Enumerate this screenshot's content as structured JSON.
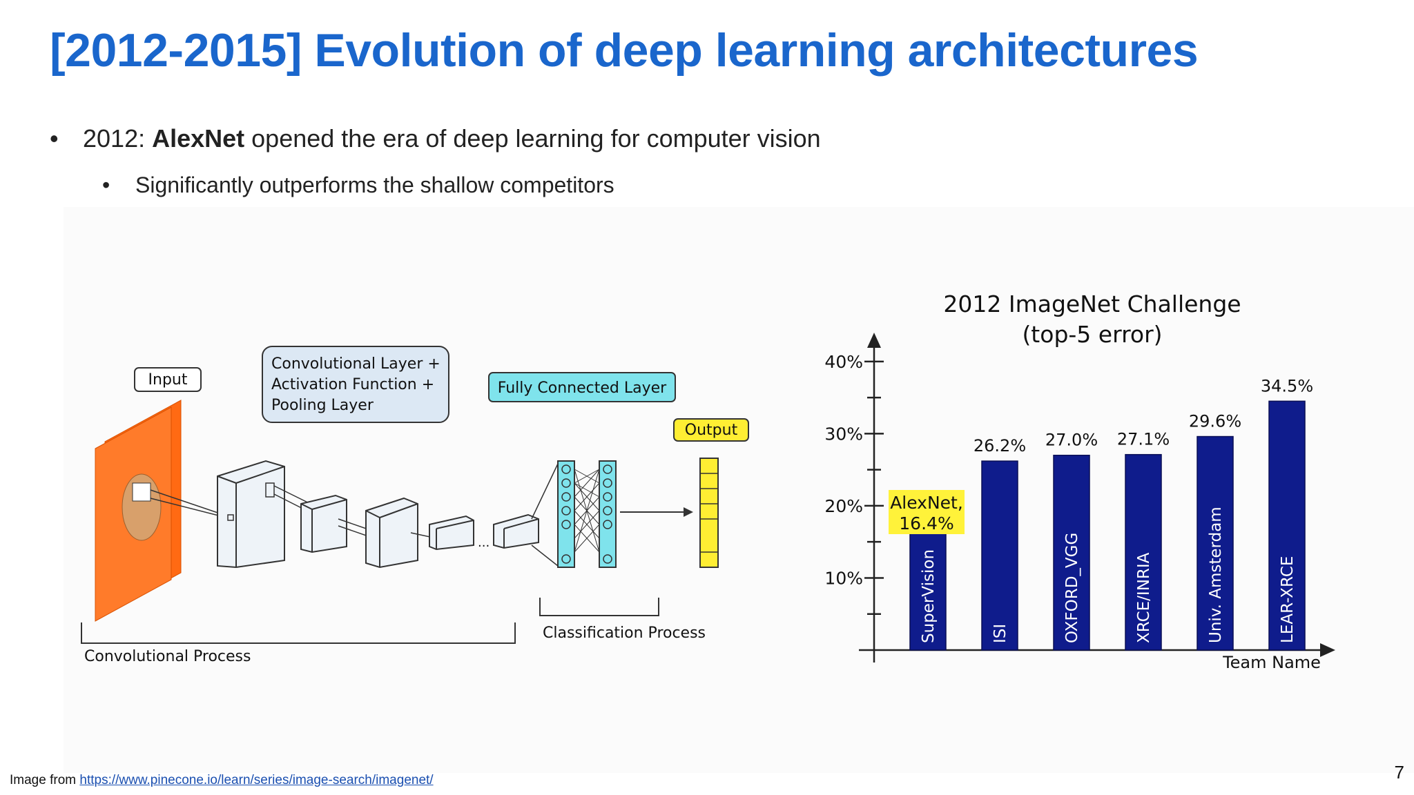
{
  "slide": {
    "title": "[2012-2015] Evolution of deep learning architectures",
    "bullet1_prefix": "2012: ",
    "bullet1_bold": "AlexNet",
    "bullet1_rest": " opened the era of deep learning for computer vision",
    "bullet2": "Significantly outperforms the shallow competitors",
    "bullet_glyph": "•",
    "caption_prefix": "Image from ",
    "caption_link": "https://www.pinecone.io/learn/series/image-search/imagenet/",
    "page_number": "7"
  },
  "diagram": {
    "input_label": "Input",
    "conv_box_line1": "Convolutional Layer +",
    "conv_box_line2": "Activation Function +",
    "conv_box_line3": "Pooling Layer",
    "fc_label": "Fully Connected Layer",
    "output_label": "Output",
    "conv_process_label": "Convolutional Process",
    "class_process_label": "Classification Process",
    "ellipsis": "...",
    "colors": {
      "input": "#ff6a13",
      "fc": "#7fe3ec",
      "output": "#ffee33",
      "conv_box": "#dce8f4"
    }
  },
  "chart_data": {
    "type": "bar",
    "title": "2012 ImageNet Challenge",
    "subtitle": "(top-5 error)",
    "xlabel": "Team Name",
    "ylabel": "",
    "ylim": [
      0,
      44
    ],
    "yticks": [
      "10%",
      "20%",
      "30%",
      "40%"
    ],
    "categories": [
      "SuperVision",
      "ISI",
      "OXFORD_VGG",
      "XRCE/INRIA",
      "Univ. Amsterdam",
      "LEAR-XRCE"
    ],
    "values": [
      16.4,
      26.2,
      27.0,
      27.1,
      29.6,
      34.5
    ],
    "value_labels": [
      "16.4%",
      "26.2%",
      "27.0%",
      "27.1%",
      "29.6%",
      "34.5%"
    ],
    "highlight_label_line1": "AlexNet,",
    "highlight_label_line2": "16.4%",
    "bar_color": "#0f1c8c",
    "highlight_color": "#fff23a"
  }
}
